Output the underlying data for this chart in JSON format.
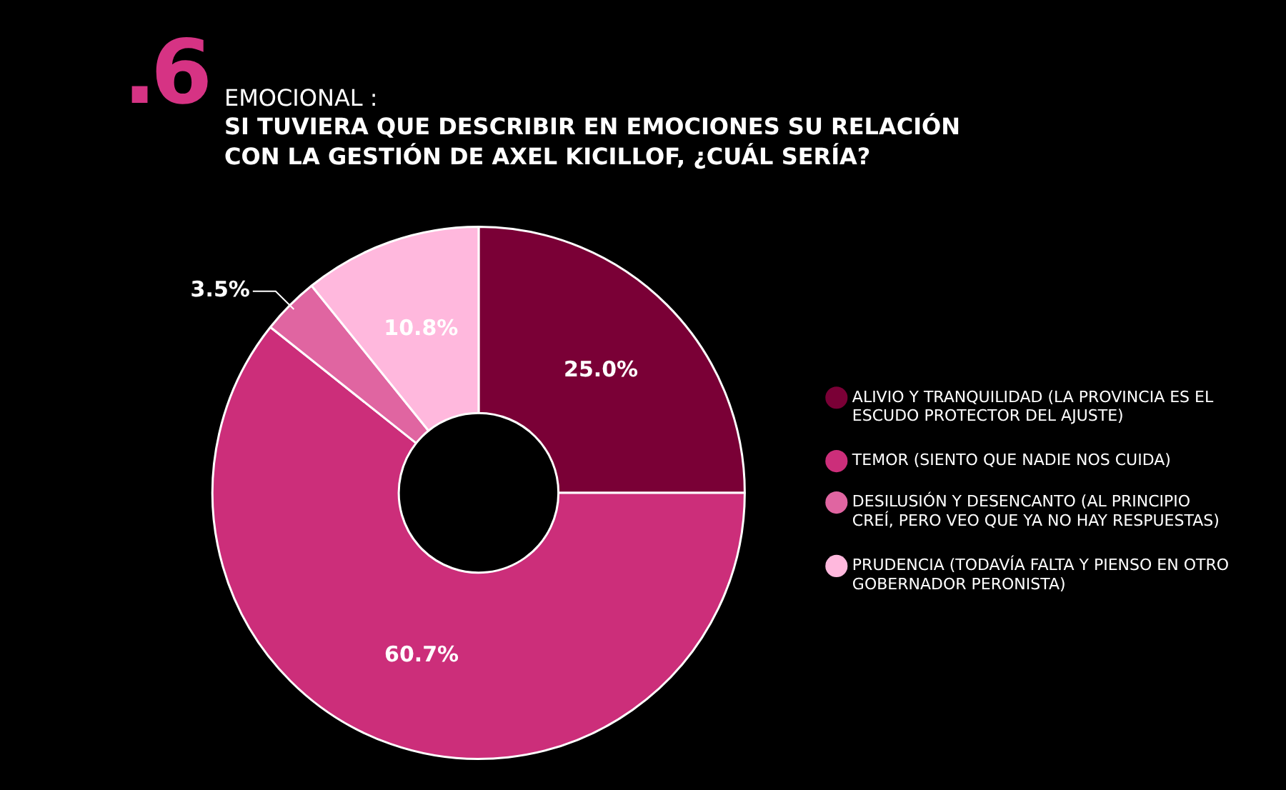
{
  "chart_data": {
    "type": "donut",
    "title": "EMOCIONAL :",
    "subtitle": "SI TUVIERA QUE DESCRIBIR EN EMOCIONES SU RELACIÓN CON LA GESTIÓN DE AXEL KICILLOF, ¿CUÁL SERÍA?",
    "annotations": [
      ".6"
    ],
    "categories": [
      "ALIVIO Y TRANQUILIDAD (LA PROVINCIA ES EL ESCUDO PROTECTOR DEL AJUSTE)",
      "TEMOR (SIENTO QUE NADIE NOS CUIDA)",
      "DESILUSIÓN Y DESENCANTO (AL PRINCIPIO CREÍ, PERO VEO QUE YA NO HAY RESPUESTAS)",
      "PRUDENCIA (TODAVÍA FALTA Y PIENSO EN OTRO GOBERNADOR PERONISTA)"
    ],
    "values": [
      25.0,
      60.7,
      3.5,
      10.8
    ],
    "colors": [
      "#7a0036",
      "#cc2e7a",
      "#e065a1",
      "#ffb8dd"
    ],
    "value_labels": [
      "25.0%",
      "60.7%",
      "3.5%",
      "10.8%"
    ],
    "legend": "right"
  }
}
